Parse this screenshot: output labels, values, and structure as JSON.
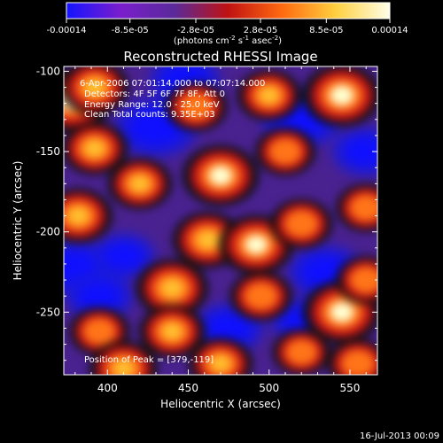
{
  "colorbar": {
    "tick_labels": [
      "-0.00014",
      "-8.5e-05",
      "-2.8e-05",
      "2.8e-05",
      "8.5e-05",
      "0.00014"
    ],
    "tick_values": [
      -0.00014,
      -8.5e-05,
      -2.8e-05,
      2.8e-05,
      8.5e-05,
      0.00014
    ],
    "range": [
      -0.00014,
      0.00014
    ],
    "unit_text": "(photons cm",
    "unit_sup1": "-2",
    "unit_mid": " s",
    "unit_sup2": "-1",
    "unit_mid2": " asec",
    "unit_sup3": "-2",
    "unit_end": ")",
    "colors": [
      "#1414ff",
      "#7a1ecd",
      "#5a2a9a",
      "#c01212",
      "#ff6a10",
      "#ffd040",
      "#ffffe8"
    ]
  },
  "footer": {
    "date": "16-Jul-2013 00:09"
  },
  "chart_data": {
    "type": "heatmap",
    "title": "Reconstructed RHESSI Image",
    "xlabel": "Heliocentric X (arcsec)",
    "ylabel": "Heliocentric Y (arcsec)",
    "xlim": [
      373,
      567
    ],
    "ylim": [
      -289,
      -97
    ],
    "x_ticks": [
      400,
      450,
      500,
      550
    ],
    "x_tick_labels": [
      "400",
      "450",
      "500",
      "550"
    ],
    "y_ticks": [
      -100,
      -150,
      -200,
      -250
    ],
    "y_tick_labels": [
      "-100",
      "-150",
      "-200",
      "-250"
    ],
    "annotations": [
      "6-Apr-2006 07:01:14.000 to 07:07:14.000",
      "Detectors: 4F 5F 6F 7F 8F, Att 0",
      "Energy Range: 12.0 - 25.0 keV",
      "Clean    Total counts: 9.35E+03"
    ],
    "peak_label": "Position of Peak = [379,-119]",
    "peak": [
      379,
      -119
    ],
    "hotspots": [
      {
        "x": 378,
        "y": -118,
        "amp": 1.0
      },
      {
        "x": 392,
        "y": -110,
        "amp": 0.7
      },
      {
        "x": 545,
        "y": -115,
        "amp": 0.95
      },
      {
        "x": 500,
        "y": -115,
        "amp": 0.6
      },
      {
        "x": 455,
        "y": -122,
        "amp": 0.55
      },
      {
        "x": 392,
        "y": -148,
        "amp": 0.65
      },
      {
        "x": 470,
        "y": -165,
        "amp": 0.9
      },
      {
        "x": 420,
        "y": -170,
        "amp": 0.6
      },
      {
        "x": 382,
        "y": -190,
        "amp": 0.7
      },
      {
        "x": 510,
        "y": -150,
        "amp": 0.5
      },
      {
        "x": 462,
        "y": -205,
        "amp": 0.75
      },
      {
        "x": 492,
        "y": -208,
        "amp": 0.85
      },
      {
        "x": 520,
        "y": -195,
        "amp": 0.55
      },
      {
        "x": 560,
        "y": -185,
        "amp": 0.5
      },
      {
        "x": 440,
        "y": -235,
        "amp": 0.8
      },
      {
        "x": 495,
        "y": -240,
        "amp": 0.55
      },
      {
        "x": 545,
        "y": -250,
        "amp": 0.95
      },
      {
        "x": 560,
        "y": -230,
        "amp": 0.5
      },
      {
        "x": 395,
        "y": -262,
        "amp": 0.5
      },
      {
        "x": 410,
        "y": -285,
        "amp": 0.7
      },
      {
        "x": 470,
        "y": -282,
        "amp": 0.6
      },
      {
        "x": 520,
        "y": -275,
        "amp": 0.45
      },
      {
        "x": 440,
        "y": -262,
        "amp": 0.65
      },
      {
        "x": 555,
        "y": -282,
        "amp": 0.55
      }
    ],
    "coldspots": [
      {
        "x": 430,
        "y": -135,
        "amp": 0.9
      },
      {
        "x": 448,
        "y": -105,
        "amp": 0.6
      },
      {
        "x": 520,
        "y": -130,
        "amp": 0.8
      },
      {
        "x": 560,
        "y": -150,
        "amp": 0.55
      },
      {
        "x": 380,
        "y": -222,
        "amp": 0.75
      },
      {
        "x": 535,
        "y": -225,
        "amp": 0.7
      },
      {
        "x": 410,
        "y": -215,
        "amp": 0.45
      },
      {
        "x": 475,
        "y": -260,
        "amp": 0.6
      },
      {
        "x": 395,
        "y": -240,
        "amp": 0.55
      },
      {
        "x": 520,
        "y": -255,
        "amp": 0.4
      }
    ]
  }
}
